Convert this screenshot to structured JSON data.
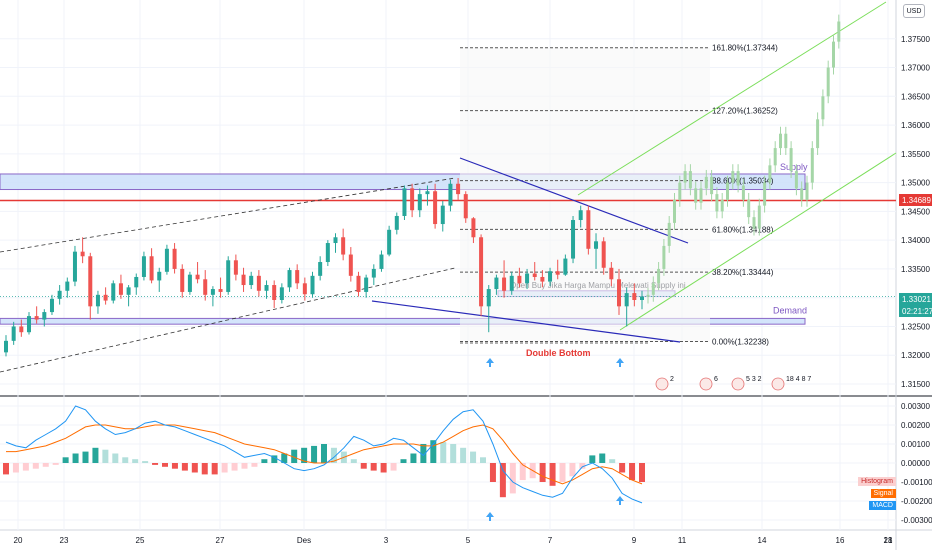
{
  "usd_label": "USD",
  "colors": {
    "up": "#26a69a",
    "down": "#ef5350",
    "proj": "#a5d6a7",
    "channel": "#7bde5a",
    "triangle": "#2a2ab8",
    "resistance": "#e53935",
    "zone_fill": "#cfe2fb",
    "zone_stroke": "#7e57c2",
    "macd": "#2196f3",
    "signal": "#ff6d00"
  },
  "chart_data": [
    {
      "type": "candlestick",
      "symbol_scale": "1.31500 - 1.38000",
      "ylim": [
        1.315,
        1.38
      ],
      "y_ticks": [
        1.315,
        1.32,
        1.325,
        1.33,
        1.335,
        1.34,
        1.345,
        1.35,
        1.355,
        1.36,
        1.365,
        1.37,
        1.375
      ],
      "x_tick_labels": [
        "20",
        "23",
        "25",
        "27",
        "Des",
        "3",
        "5",
        "7",
        "9",
        "11",
        "14",
        "16",
        "18",
        "21"
      ],
      "current_price": "1.33021",
      "countdown": "02:21:27",
      "resistance_price": "1.34689",
      "fib_levels": [
        {
          "label": "161.80%(1.37344)",
          "price": 1.37344
        },
        {
          "label": "127.20%(1.36252)",
          "price": 1.36252
        },
        {
          "label": "88.60%(1.35034)",
          "price": 1.35034
        },
        {
          "label": "61.80%(1.34188)",
          "price": 1.34188
        },
        {
          "label": "38.20%(1.33444)",
          "price": 1.33444
        },
        {
          "label": "0.00%(1.32238)",
          "price": 1.32238
        }
      ],
      "zones": [
        {
          "label": "Supply",
          "top": 1.3515,
          "bottom": 1.3488
        },
        {
          "label": "Demand",
          "top": 1.3264,
          "bottom": 1.3254
        },
        {
          "label": "Open Buy Jika Harga Mampu Melewati Supply ini",
          "top": 1.3312,
          "bottom": 1.3302
        }
      ],
      "annotations": [
        "Double Bottom"
      ],
      "event_markers": [
        "2",
        "6",
        "5 3 2",
        "18 4 8 7"
      ],
      "candles": [
        [
          1.3205,
          1.3235,
          1.3198,
          1.3225
        ],
        [
          1.3225,
          1.3258,
          1.3218,
          1.325
        ],
        [
          1.325,
          1.3262,
          1.3232,
          1.324
        ],
        [
          1.324,
          1.3275,
          1.3236,
          1.3268
        ],
        [
          1.3268,
          1.3285,
          1.3255,
          1.3262
        ],
        [
          1.3262,
          1.328,
          1.325,
          1.3275
        ],
        [
          1.3275,
          1.3305,
          1.327,
          1.3298
        ],
        [
          1.3298,
          1.3322,
          1.3288,
          1.3312
        ],
        [
          1.3312,
          1.3335,
          1.33,
          1.3328
        ],
        [
          1.3328,
          1.339,
          1.332,
          1.338
        ],
        [
          1.338,
          1.3405,
          1.336,
          1.3372
        ],
        [
          1.3372,
          1.3378,
          1.3262,
          1.3285
        ],
        [
          1.3285,
          1.3312,
          1.3272,
          1.3305
        ],
        [
          1.3305,
          1.3318,
          1.3288,
          1.3295
        ],
        [
          1.3295,
          1.333,
          1.329,
          1.3325
        ],
        [
          1.3325,
          1.334,
          1.3298,
          1.3305
        ],
        [
          1.3305,
          1.3322,
          1.3285,
          1.3318
        ],
        [
          1.3318,
          1.3342,
          1.3305,
          1.3336
        ],
        [
          1.3336,
          1.338,
          1.333,
          1.3372
        ],
        [
          1.3372,
          1.3386,
          1.3325,
          1.333
        ],
        [
          1.333,
          1.3352,
          1.331,
          1.3345
        ],
        [
          1.3345,
          1.3392,
          1.334,
          1.3385
        ],
        [
          1.3385,
          1.3395,
          1.3342,
          1.335
        ],
        [
          1.335,
          1.3358,
          1.33,
          1.331
        ],
        [
          1.331,
          1.3345,
          1.3305,
          1.334
        ],
        [
          1.334,
          1.3362,
          1.3325,
          1.3332
        ],
        [
          1.3332,
          1.3348,
          1.3295,
          1.3305
        ],
        [
          1.3305,
          1.332,
          1.3285,
          1.3315
        ],
        [
          1.3315,
          1.3335,
          1.33,
          1.331
        ],
        [
          1.331,
          1.3372,
          1.3305,
          1.3365
        ],
        [
          1.3365,
          1.3375,
          1.333,
          1.334
        ],
        [
          1.334,
          1.3352,
          1.331,
          1.3322
        ],
        [
          1.3322,
          1.3345,
          1.3315,
          1.3338
        ],
        [
          1.3338,
          1.3348,
          1.3302,
          1.3312
        ],
        [
          1.3312,
          1.333,
          1.3298,
          1.3322
        ],
        [
          1.3322,
          1.333,
          1.3282,
          1.3296
        ],
        [
          1.3296,
          1.3325,
          1.329,
          1.3318
        ],
        [
          1.3318,
          1.3352,
          1.331,
          1.3348
        ],
        [
          1.3348,
          1.3358,
          1.3315,
          1.3325
        ],
        [
          1.3325,
          1.3335,
          1.3295,
          1.3306
        ],
        [
          1.3306,
          1.3345,
          1.33,
          1.3338
        ],
        [
          1.3338,
          1.3372,
          1.333,
          1.3362
        ],
        [
          1.3362,
          1.34,
          1.3355,
          1.3395
        ],
        [
          1.3395,
          1.3412,
          1.3378,
          1.3405
        ],
        [
          1.3405,
          1.342,
          1.3365,
          1.3375
        ],
        [
          1.3375,
          1.3388,
          1.3328,
          1.3338
        ],
        [
          1.3338,
          1.3345,
          1.3302,
          1.331
        ],
        [
          1.331,
          1.334,
          1.33,
          1.3335
        ],
        [
          1.3335,
          1.3358,
          1.3322,
          1.335
        ],
        [
          1.335,
          1.3382,
          1.3345,
          1.3375
        ],
        [
          1.3375,
          1.3425,
          1.3372,
          1.3418
        ],
        [
          1.3418,
          1.3448,
          1.341,
          1.3442
        ],
        [
          1.3442,
          1.3495,
          1.3435,
          1.349
        ],
        [
          1.349,
          1.3498,
          1.344,
          1.3452
        ],
        [
          1.3452,
          1.349,
          1.344,
          1.348
        ],
        [
          1.348,
          1.3495,
          1.346,
          1.3485
        ],
        [
          1.3485,
          1.3498,
          1.342,
          1.3428
        ],
        [
          1.3428,
          1.3468,
          1.3415,
          1.346
        ],
        [
          1.346,
          1.3505,
          1.345,
          1.3498
        ],
        [
          1.3498,
          1.3508,
          1.347,
          1.348
        ],
        [
          1.348,
          1.3485,
          1.343,
          1.3438
        ],
        [
          1.3438,
          1.344,
          1.3395,
          1.3405
        ],
        [
          1.3405,
          1.341,
          1.3268,
          1.3285
        ],
        [
          1.3285,
          1.3322,
          1.324,
          1.3315
        ],
        [
          1.3315,
          1.334,
          1.3305,
          1.3335
        ],
        [
          1.3335,
          1.3365,
          1.33,
          1.3312
        ],
        [
          1.3312,
          1.3345,
          1.3305,
          1.3338
        ],
        [
          1.3338,
          1.3352,
          1.3318,
          1.3325
        ],
        [
          1.3325,
          1.335,
          1.3315,
          1.3342
        ],
        [
          1.3342,
          1.3362,
          1.333,
          1.3336
        ],
        [
          1.3336,
          1.3348,
          1.3318,
          1.3328
        ],
        [
          1.3328,
          1.3352,
          1.332,
          1.3346
        ],
        [
          1.3346,
          1.3366,
          1.3332,
          1.334
        ],
        [
          1.334,
          1.3375,
          1.3338,
          1.3368
        ],
        [
          1.3368,
          1.3442,
          1.336,
          1.3435
        ],
        [
          1.3435,
          1.346,
          1.3422,
          1.3452
        ],
        [
          1.3452,
          1.346,
          1.3375,
          1.3385
        ],
        [
          1.3385,
          1.3412,
          1.335,
          1.3398
        ],
        [
          1.3398,
          1.3405,
          1.334,
          1.3352
        ],
        [
          1.3352,
          1.3362,
          1.332,
          1.3332
        ],
        [
          1.3332,
          1.335,
          1.327,
          1.3285
        ],
        [
          1.3285,
          1.3318,
          1.325,
          1.3308
        ],
        [
          1.3308,
          1.3325,
          1.3285,
          1.3296
        ],
        [
          1.3296,
          1.3312,
          1.328,
          1.3302
        ]
      ],
      "projection_closes": [
        1.3305,
        1.3325,
        1.335,
        1.339,
        1.343,
        1.347,
        1.35,
        1.352,
        1.349,
        1.3465,
        1.349,
        1.351,
        1.348,
        1.345,
        1.347,
        1.35,
        1.352,
        1.3495,
        1.347,
        1.344,
        1.342,
        1.346,
        1.35,
        1.353,
        1.356,
        1.3585,
        1.356,
        1.352,
        1.349,
        1.347,
        1.35,
        1.356,
        1.361,
        1.365,
        1.37,
        1.3745,
        1.378
      ]
    },
    {
      "type": "macd",
      "ylim": [
        -0.004,
        0.004
      ],
      "y_ticks": [
        0.003,
        0.002,
        0.001,
        0.0,
        -0.001,
        -0.002,
        -0.003
      ],
      "legend": [
        "Histogram",
        "Signal",
        "MACD"
      ],
      "macd": [
        0.0011,
        0.0009,
        0.0008,
        0.0012,
        0.0015,
        0.0018,
        0.0022,
        0.003,
        0.0028,
        0.0022,
        0.0018,
        0.0015,
        0.0016,
        0.0018,
        0.0021,
        0.0022,
        0.002,
        0.0019,
        0.0017,
        0.0015,
        0.0013,
        0.0011,
        0.0009,
        0.0006,
        0.0003,
        0.0004,
        0.0005,
        0.0003,
        0.0,
        -0.0003,
        -0.0004,
        -0.0003,
        -0.0001,
        0.0003,
        0.0008,
        0.0014,
        0.0012,
        0.0009,
        0.001,
        0.0013,
        0.0012,
        0.0008,
        0.0004,
        0.001,
        0.0017,
        0.0023,
        0.0027,
        0.0028,
        0.0022,
        0.001,
        -0.0004,
        -0.001,
        -0.0013,
        -0.0015,
        -0.0017,
        -0.0018,
        -0.0016,
        -0.0008,
        -0.0002,
        0.0,
        -0.0003,
        -0.0008,
        -0.0016,
        -0.0019,
        -0.0021
      ],
      "signal": [
        0.0006,
        0.0006,
        0.0007,
        0.0008,
        0.0009,
        0.0011,
        0.0013,
        0.0016,
        0.0019,
        0.002,
        0.002,
        0.0019,
        0.0018,
        0.0018,
        0.0019,
        0.002,
        0.002,
        0.002,
        0.0019,
        0.0018,
        0.0017,
        0.0016,
        0.0014,
        0.0012,
        0.001,
        0.0009,
        0.0008,
        0.0007,
        0.0005,
        0.0003,
        0.0001,
        0.0,
        0.0,
        0.0001,
        0.0003,
        0.0005,
        0.0007,
        0.0008,
        0.0009,
        0.001,
        0.001,
        0.001,
        0.0009,
        0.0009,
        0.0011,
        0.0014,
        0.0017,
        0.0019,
        0.002,
        0.0018,
        0.0012,
        0.0005,
        -0.0001,
        -0.0004,
        -0.0007,
        -0.0009,
        -0.0011,
        -0.0009,
        -0.0006,
        -0.0003,
        -0.0002,
        -0.0003,
        -0.0006,
        -0.0009,
        -0.0011
      ],
      "histogram": [
        -0.0006,
        -0.0005,
        -0.0004,
        -0.0003,
        -0.0002,
        -0.0001,
        0.0003,
        0.0005,
        0.0006,
        0.0008,
        0.0007,
        0.0005,
        0.0003,
        0.0002,
        0.0001,
        -0.0001,
        -0.0002,
        -0.0003,
        -0.0004,
        -0.0005,
        -0.0006,
        -0.0006,
        -0.0005,
        -0.0004,
        -0.0003,
        -0.0002,
        0.0002,
        0.0004,
        0.0005,
        0.0007,
        0.0008,
        0.0009,
        0.001,
        0.0008,
        0.0006,
        0.0002,
        -0.0003,
        -0.0004,
        -0.0005,
        -0.0004,
        0.0002,
        0.0005,
        0.001,
        0.0012,
        0.0011,
        0.001,
        0.0008,
        0.0006,
        0.0003,
        -0.001,
        -0.0018,
        -0.0016,
        -0.0009,
        -0.0008,
        -0.001,
        -0.0012,
        -0.001,
        -0.0007,
        -0.0003,
        0.0004,
        0.0005,
        0.0002,
        -0.0005,
        -0.0009,
        -0.001
      ]
    }
  ]
}
